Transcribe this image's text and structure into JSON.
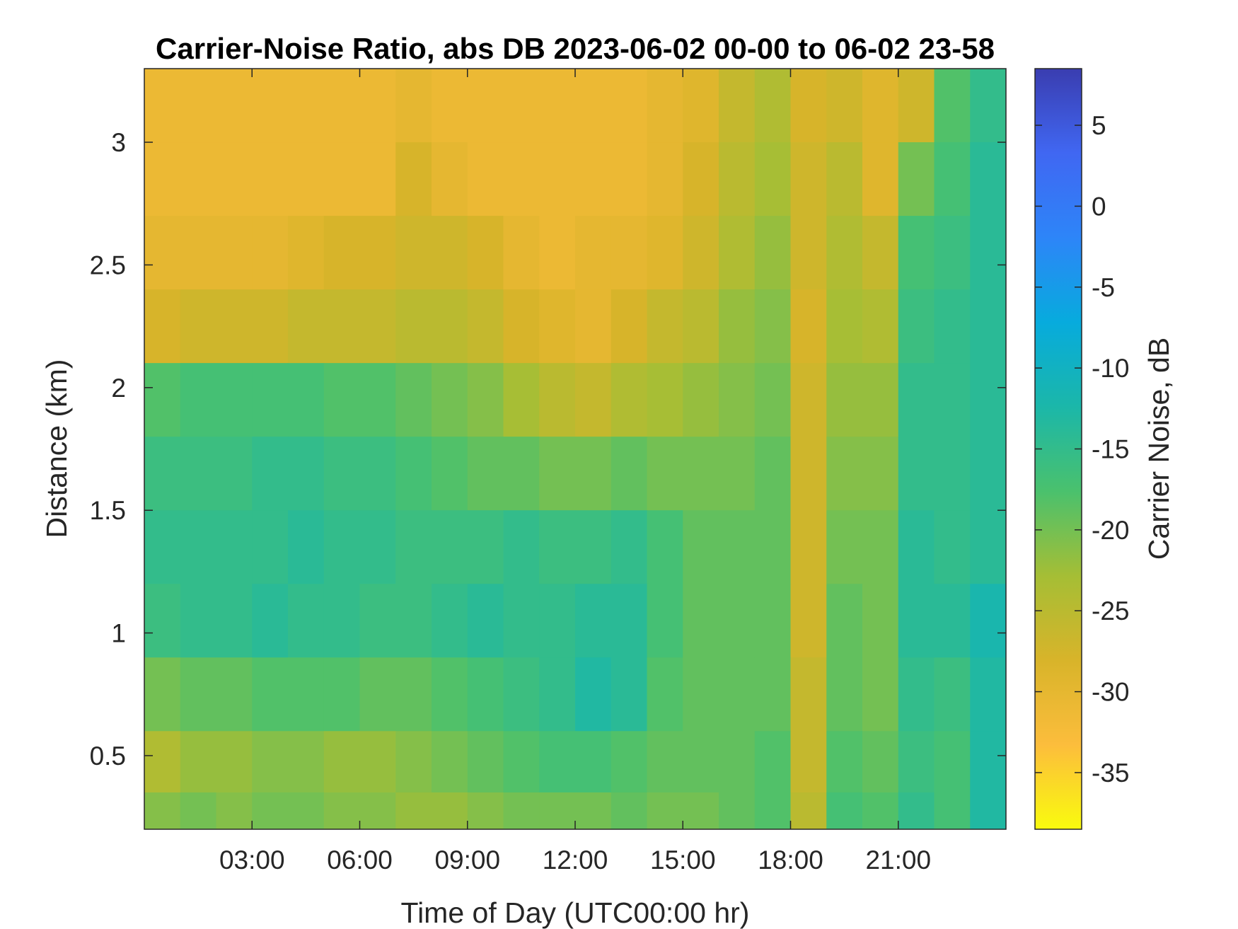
{
  "chart_data": {
    "type": "heatmap",
    "title": "Carrier-Noise Ratio, abs DB 2023-06-02 00-00 to 06-02 23-58",
    "xlabel": "Time of Day (UTC00:00 hr)",
    "ylabel": "Distance (km)",
    "colorbar_label": "Carrier Noise, dB",
    "x_unit": "hours UTC",
    "xlim": [
      0,
      24
    ],
    "ylim": [
      0.2,
      3.3
    ],
    "clim": [
      -38.5,
      8.5
    ],
    "x_ticks": [
      {
        "value": 3,
        "label": "03:00"
      },
      {
        "value": 6,
        "label": "06:00"
      },
      {
        "value": 9,
        "label": "09:00"
      },
      {
        "value": 12,
        "label": "12:00"
      },
      {
        "value": 15,
        "label": "15:00"
      },
      {
        "value": 18,
        "label": "18:00"
      },
      {
        "value": 21,
        "label": "21:00"
      }
    ],
    "y_ticks": [
      {
        "value": 0.5,
        "label": "0.5"
      },
      {
        "value": 1,
        "label": "1"
      },
      {
        "value": 1.5,
        "label": "1.5"
      },
      {
        "value": 2,
        "label": "2"
      },
      {
        "value": 2.5,
        "label": "2.5"
      },
      {
        "value": 3,
        "label": "3"
      }
    ],
    "colorbar_ticks": [
      {
        "value": 5,
        "label": "5"
      },
      {
        "value": 0,
        "label": "0"
      },
      {
        "value": -5,
        "label": "-5"
      },
      {
        "value": -10,
        "label": "-10"
      },
      {
        "value": -15,
        "label": "-15"
      },
      {
        "value": -20,
        "label": "-20"
      },
      {
        "value": -25,
        "label": "-25"
      },
      {
        "value": -30,
        "label": "-30"
      },
      {
        "value": -35,
        "label": "-35"
      }
    ],
    "grid": false,
    "colormap": "parula",
    "colormap_stops": [
      "#f9fb0e",
      "#fcbd3c",
      "#d8b42a",
      "#a5be35",
      "#4ac16d",
      "#1bb7a9",
      "#07abdd",
      "#2d85f8",
      "#4067f2",
      "#3a3db0"
    ],
    "cells": {
      "x": [
        0.5,
        1.5,
        2.5,
        3.5,
        4.5,
        5.5,
        6.5,
        7.5,
        8.5,
        9.5,
        10.5,
        11.5,
        12.5,
        13.5,
        14.5,
        15.5,
        16.5,
        17.5,
        18.5,
        19.5,
        20.5,
        21.5,
        22.5,
        23.5
      ],
      "y": [
        3.15,
        2.85,
        2.55,
        2.25,
        1.95,
        1.65,
        1.35,
        1.05,
        0.75,
        0.45,
        0.25
      ],
      "z": [
        [
          -31,
          -31,
          -31,
          -31,
          -31,
          -31,
          -31,
          -30,
          -31,
          -31,
          -31,
          -31,
          -31,
          -31,
          -30,
          -29,
          -26,
          -24,
          -28,
          -27,
          -29,
          -27,
          -18,
          -15
        ],
        [
          -31,
          -31,
          -31,
          -31,
          -31,
          -31,
          -31,
          -28,
          -30,
          -31,
          -31,
          -31,
          -31,
          -31,
          -30,
          -28,
          -25,
          -23,
          -27,
          -25,
          -29,
          -20,
          -17,
          -14
        ],
        [
          -30,
          -30,
          -30,
          -30,
          -29,
          -28,
          -28,
          -27,
          -27,
          -28,
          -30,
          -31,
          -30,
          -30,
          -29,
          -27,
          -24,
          -22,
          -27,
          -24,
          -26,
          -17,
          -16,
          -14
        ],
        [
          -28,
          -27,
          -27,
          -27,
          -26,
          -26,
          -26,
          -25,
          -25,
          -26,
          -28,
          -29,
          -30,
          -28,
          -26,
          -25,
          -22,
          -21,
          -28,
          -23,
          -24,
          -16,
          -15,
          -14
        ],
        [
          -18,
          -17,
          -17,
          -17,
          -17,
          -18,
          -18,
          -19,
          -20,
          -21,
          -23,
          -25,
          -26,
          -24,
          -23,
          -22,
          -21,
          -20,
          -27,
          -22,
          -22,
          -15,
          -15,
          -14
        ],
        [
          -16,
          -16,
          -16,
          -15,
          -15,
          -16,
          -16,
          -17,
          -18,
          -19,
          -19,
          -20,
          -20,
          -19,
          -20,
          -20,
          -20,
          -19,
          -27,
          -21,
          -21,
          -15,
          -15,
          -14
        ],
        [
          -15,
          -15,
          -15,
          -15,
          -14,
          -15,
          -15,
          -16,
          -16,
          -16,
          -15,
          -16,
          -16,
          -15,
          -17,
          -19,
          -19,
          -19,
          -27,
          -20,
          -20,
          -14,
          -15,
          -14
        ],
        [
          -16,
          -15,
          -15,
          -14,
          -15,
          -15,
          -16,
          -16,
          -15,
          -14,
          -15,
          -15,
          -14,
          -14,
          -17,
          -19,
          -19,
          -19,
          -27,
          -19,
          -20,
          -14,
          -14,
          -12
        ],
        [
          -20,
          -19,
          -19,
          -18,
          -18,
          -18,
          -19,
          -19,
          -18,
          -17,
          -16,
          -15,
          -13,
          -14,
          -18,
          -19,
          -19,
          -19,
          -26,
          -19,
          -20,
          -15,
          -16,
          -13
        ],
        [
          -24,
          -22,
          -22,
          -21,
          -21,
          -22,
          -22,
          -21,
          -20,
          -19,
          -18,
          -17,
          -17,
          -18,
          -19,
          -19,
          -19,
          -18,
          -26,
          -18,
          -19,
          -16,
          -17,
          -13
        ],
        [
          -21,
          -20,
          -21,
          -20,
          -20,
          -21,
          -21,
          -22,
          -22,
          -21,
          -20,
          -20,
          -20,
          -19,
          -20,
          -20,
          -19,
          -18,
          -25,
          -17,
          -18,
          -15,
          -17,
          -13
        ]
      ]
    }
  }
}
